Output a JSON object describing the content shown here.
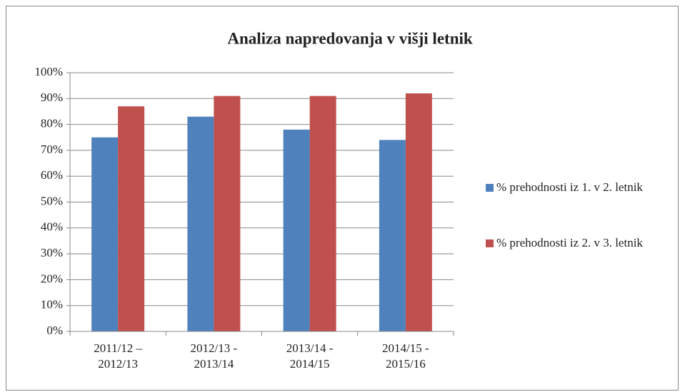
{
  "chart_data": {
    "type": "bar",
    "title": "Analiza napredovanja v višji letnik",
    "categories": [
      "2011/12 – 2012/13",
      "2012/13 - 2013/14",
      "2013/14 - 2014/15",
      "2014/15 - 2015/16"
    ],
    "series": [
      {
        "name": "% prehodnosti iz 1. v 2. letnik",
        "color": "#4f81bd",
        "values": [
          75,
          83,
          78,
          74
        ]
      },
      {
        "name": "% prehodnosti iz 2. v 3. letnik",
        "color": "#c0504d",
        "values": [
          87,
          91,
          91,
          92
        ]
      }
    ],
    "ylim": [
      0,
      100
    ],
    "yticks": [
      {
        "value": 0,
        "label": "0%"
      },
      {
        "value": 10,
        "label": "10%"
      },
      {
        "value": 20,
        "label": "20%"
      },
      {
        "value": 30,
        "label": "30%"
      },
      {
        "value": 40,
        "label": "40%"
      },
      {
        "value": 50,
        "label": "50%"
      },
      {
        "value": 60,
        "label": "60%"
      },
      {
        "value": 70,
        "label": "70%"
      },
      {
        "value": 80,
        "label": "80%"
      },
      {
        "value": 90,
        "label": "90%"
      },
      {
        "value": 100,
        "label": "100%"
      }
    ],
    "grid": true,
    "legend": "right"
  }
}
